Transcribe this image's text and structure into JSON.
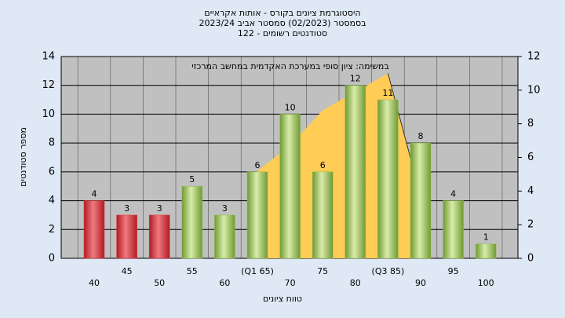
{
  "chart_data": {
    "type": "bar",
    "title": [
      "היסטוגרמת ציונים בקורס - אותות אקראיים",
      "בסמסטר  (02/2023)  סמסטר אביב 2023/24",
      "סטודנטים רשומים - 122"
    ],
    "annotation": "במשימה: ציון סופי במערכת האקדמית במחשב המרכזי",
    "ylabel": "מספר סטודנטים",
    "xlabel": "טווח ציונים",
    "categories": [
      "40",
      "45",
      "50",
      "55",
      "60",
      "(Q1 65)",
      "70",
      "75",
      "80",
      "(Q3 85)",
      "90",
      "95",
      "100"
    ],
    "values": [
      4,
      3,
      3,
      5,
      3,
      6,
      10,
      6,
      12,
      11,
      8,
      4,
      1
    ],
    "colors": [
      "#d8333b",
      "#d8333b",
      "#d8333b",
      "#93bd4c",
      "#93bd4c",
      "#93bd4c",
      "#93bd4c",
      "#93bd4c",
      "#93bd4c",
      "#93bd4c",
      "#93bd4c",
      "#93bd4c",
      "#93bd4c"
    ],
    "area": {
      "axis": "y2",
      "color": "#ffcc55",
      "values": [
        null,
        null,
        null,
        null,
        null,
        5.2,
        6.7,
        8.8,
        9.9,
        11,
        3.7,
        null,
        null
      ]
    },
    "ylim": [
      0,
      14
    ],
    "yticks": [
      0,
      2,
      4,
      6,
      8,
      10,
      12,
      14
    ],
    "y2lim": [
      0,
      12
    ],
    "y2ticks": [
      0,
      2,
      4,
      6,
      8,
      10,
      12
    ],
    "grid": true
  }
}
